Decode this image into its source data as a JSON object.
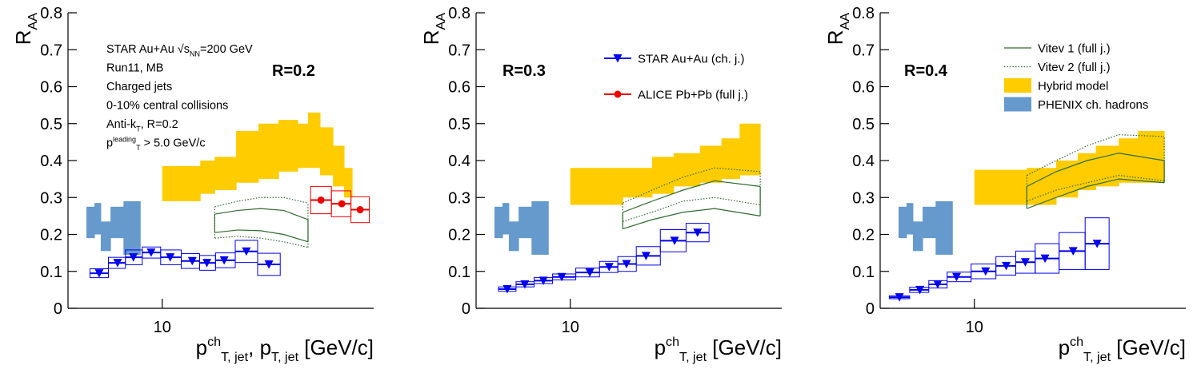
{
  "chart_data": [
    {
      "type": "scatter",
      "label": "R=0.2",
      "ylabel": [
        {
          "t": "R"
        },
        {
          "t": "AA",
          "v": "sub"
        }
      ],
      "xlabel": [
        {
          "t": "p"
        },
        {
          "t": "ch",
          "v": "sup"
        },
        {
          "t": "T, jet",
          "v": "sub"
        },
        {
          "t": ", p"
        },
        {
          "t": "T, jet",
          "v": "sub"
        },
        {
          "t": " [GeV/c]"
        }
      ],
      "annotation": [
        [
          {
            "t": "STAR Au+Au √s"
          },
          {
            "t": "NN",
            "v": "sub"
          },
          {
            "t": "=200 GeV"
          }
        ],
        [
          {
            "t": "Run11, MB"
          }
        ],
        [
          {
            "t": "Charged jets"
          }
        ],
        [
          {
            "t": "0-10% central collisions"
          }
        ],
        [
          {
            "t": "Anti-k"
          },
          {
            "t": "T",
            "v": "sub"
          },
          {
            "t": ", R=0.2"
          }
        ],
        [
          {
            "t": "p"
          },
          {
            "t": "leading",
            "v": "sup"
          },
          {
            "t": "T",
            "v": "sub"
          },
          {
            "t": " > 5.0 GeV/c"
          }
        ]
      ],
      "log_x": true,
      "xlim": [
        4.5,
        60
      ],
      "ylim": [
        0,
        0.8
      ],
      "xticks": [
        10
      ],
      "yticks": [
        0,
        0.1,
        0.2,
        0.3,
        0.4,
        0.5,
        0.6,
        0.7,
        0.8
      ],
      "legend": [],
      "series": [
        {
          "kind": "steps",
          "color": "#6699cc",
          "edges": [
            5.26,
            5.63,
            5.94,
            6.45,
            7.2,
            8.3
          ],
          "low": [
            0.19,
            0.2,
            0.155,
            0.19,
            0.145
          ],
          "high": [
            0.275,
            0.285,
            0.235,
            0.275,
            0.29
          ]
        },
        {
          "kind": "steps",
          "color": "#ffcc00",
          "edges": [
            10,
            13.8,
            15.6,
            18.7,
            22.6,
            26.8,
            31.5,
            34.4,
            38.1,
            42.5,
            46.7,
            50
          ],
          "low": [
            0.29,
            0.31,
            0.32,
            0.34,
            0.35,
            0.37,
            0.38,
            0.38,
            0.36,
            0.33,
            0.3
          ],
          "high": [
            0.385,
            0.4,
            0.41,
            0.48,
            0.5,
            0.51,
            0.5,
            0.53,
            0.49,
            0.44,
            0.38
          ]
        },
        {
          "kind": "curves",
          "color": "#2e6b2e",
          "dotted": false,
          "x": [
            15.6,
            19,
            23,
            28,
            34.4
          ],
          "low": [
            0.205,
            0.212,
            0.21,
            0.2,
            0.18
          ],
          "high": [
            0.255,
            0.265,
            0.27,
            0.265,
            0.24
          ]
        },
        {
          "kind": "curves",
          "color": "#2e6b2e",
          "dotted": true,
          "x": [
            15.6,
            19,
            23,
            28,
            34.4
          ],
          "low": [
            0.19,
            0.195,
            0.19,
            0.18,
            0.165
          ],
          "high": [
            0.275,
            0.29,
            0.3,
            0.3,
            0.285
          ]
        },
        {
          "kind": "points",
          "marker": "triangle",
          "color": "#0000ee",
          "x": [
            5.86,
            6.85,
            7.83,
            9.1,
            10.7,
            12.9,
            14.6,
            16.9,
            20.4,
            24.7
          ],
          "values": [
            0.095,
            0.123,
            0.138,
            0.151,
            0.138,
            0.128,
            0.123,
            0.13,
            0.154,
            0.119
          ],
          "sys": [
            0.012,
            0.015,
            0.02,
            0.015,
            0.02,
            0.02,
            0.02,
            0.02,
            0.03,
            0.03
          ]
        },
        {
          "kind": "points",
          "marker": "circle",
          "color": "#ee0000",
          "x": [
            38.4,
            45.8,
            53.5
          ],
          "values": [
            0.293,
            0.283,
            0.267
          ],
          "sys": [
            0.037,
            0.035,
            0.035
          ]
        }
      ]
    },
    {
      "type": "scatter",
      "label": "R=0.3",
      "ylabel": [
        {
          "t": "R"
        },
        {
          "t": "AA",
          "v": "sub"
        }
      ],
      "xlabel": [
        {
          "t": "p"
        },
        {
          "t": "ch",
          "v": "sup"
        },
        {
          "t": "T, jet",
          "v": "sub"
        },
        {
          "t": " [GeV/c]"
        }
      ],
      "annotation": [],
      "log_x": true,
      "xlim": [
        4.5,
        60
      ],
      "ylim": [
        0,
        0.8
      ],
      "xticks": [
        10
      ],
      "yticks": [
        0,
        0.1,
        0.2,
        0.3,
        0.4,
        0.5,
        0.6,
        0.7,
        0.8
      ],
      "legend": [
        {
          "name": "STAR Au+Au (ch. j.)",
          "style": "triangle",
          "color": "#0000ee"
        },
        {
          "name": "ALICE Pb+Pb (full j.)",
          "style": "circle",
          "color": "#ee0000"
        }
      ],
      "series": [
        {
          "kind": "steps",
          "color": "#6699cc",
          "edges": [
            5.26,
            5.63,
            5.94,
            6.45,
            7.2,
            8.3
          ],
          "low": [
            0.19,
            0.2,
            0.155,
            0.19,
            0.145
          ],
          "high": [
            0.275,
            0.285,
            0.235,
            0.275,
            0.29
          ]
        },
        {
          "kind": "steps",
          "color": "#ffcc00",
          "edges": [
            10,
            15.6,
            20,
            24,
            30,
            36,
            42,
            50
          ],
          "low": [
            0.28,
            0.3,
            0.31,
            0.33,
            0.34,
            0.35,
            0.36
          ],
          "high": [
            0.38,
            0.38,
            0.41,
            0.42,
            0.44,
            0.46,
            0.5
          ]
        },
        {
          "kind": "curves",
          "color": "#2e6b2e",
          "dotted": false,
          "x": [
            15.6,
            20,
            26,
            34,
            50
          ],
          "low": [
            0.215,
            0.24,
            0.26,
            0.27,
            0.25
          ],
          "high": [
            0.26,
            0.29,
            0.32,
            0.345,
            0.33
          ]
        },
        {
          "kind": "curves",
          "color": "#2e6b2e",
          "dotted": true,
          "x": [
            15.6,
            20,
            26,
            34,
            50
          ],
          "low": [
            0.235,
            0.26,
            0.29,
            0.3,
            0.28
          ],
          "high": [
            0.285,
            0.32,
            0.355,
            0.38,
            0.37
          ]
        },
        {
          "kind": "points",
          "marker": "triangle",
          "color": "#0000ee",
          "x": [
            5.86,
            6.8,
            7.96,
            9.3,
            11.8,
            13.9,
            16.1,
            19,
            24.2,
            29.4
          ],
          "values": [
            0.052,
            0.065,
            0.075,
            0.085,
            0.097,
            0.112,
            0.12,
            0.142,
            0.183,
            0.205
          ],
          "sys": [
            0.006,
            0.007,
            0.008,
            0.008,
            0.012,
            0.015,
            0.02,
            0.025,
            0.03,
            0.025
          ]
        }
      ]
    },
    {
      "type": "scatter",
      "label": "R=0.4",
      "ylabel": [
        {
          "t": "R"
        },
        {
          "t": "AA",
          "v": "sub"
        }
      ],
      "xlabel": [
        {
          "t": "p"
        },
        {
          "t": "ch",
          "v": "sup"
        },
        {
          "t": "T, jet",
          "v": "sub"
        },
        {
          "t": " [GeV/c]"
        }
      ],
      "annotation": [],
      "log_x": true,
      "xlim": [
        4.5,
        60
      ],
      "ylim": [
        0,
        0.8
      ],
      "xticks": [
        10
      ],
      "yticks": [
        0,
        0.1,
        0.2,
        0.3,
        0.4,
        0.5,
        0.6,
        0.7,
        0.8
      ],
      "legend": [
        {
          "name": "Vitev 1 (full j.)",
          "style": "line",
          "color": "#2e6b2e"
        },
        {
          "name": "Vitev 2 (full j.)",
          "style": "dotted",
          "color": "#2e6b2e"
        },
        {
          "name": "Hybrid model",
          "style": "fill",
          "color": "#ffcc00"
        },
        {
          "name": "PHENIX ch. hadrons",
          "style": "fill",
          "color": "#6699cc"
        }
      ],
      "series": [
        {
          "kind": "steps",
          "color": "#6699cc",
          "edges": [
            5.26,
            5.63,
            5.94,
            6.45,
            7.2,
            8.3
          ],
          "low": [
            0.19,
            0.2,
            0.155,
            0.19,
            0.145
          ],
          "high": [
            0.275,
            0.285,
            0.235,
            0.275,
            0.29
          ]
        },
        {
          "kind": "steps",
          "color": "#ffcc00",
          "edges": [
            10,
            15.6,
            20,
            24,
            28,
            34,
            40,
            50
          ],
          "low": [
            0.28,
            0.28,
            0.3,
            0.32,
            0.33,
            0.34,
            0.34
          ],
          "high": [
            0.375,
            0.38,
            0.4,
            0.42,
            0.44,
            0.46,
            0.48
          ]
        },
        {
          "kind": "curves",
          "color": "#2e6b2e",
          "dotted": false,
          "x": [
            15.6,
            20,
            26,
            34,
            50
          ],
          "low": [
            0.27,
            0.3,
            0.33,
            0.35,
            0.34
          ],
          "high": [
            0.33,
            0.37,
            0.4,
            0.42,
            0.4
          ]
        },
        {
          "kind": "curves",
          "color": "#2e6b2e",
          "dotted": true,
          "x": [
            15.6,
            20,
            26,
            34,
            50
          ],
          "low": [
            0.29,
            0.32,
            0.34,
            0.36,
            0.345
          ],
          "high": [
            0.36,
            0.4,
            0.44,
            0.47,
            0.465
          ]
        },
        {
          "kind": "points",
          "marker": "triangle",
          "color": "#0000ee",
          "x": [
            5.3,
            6.3,
            7.33,
            8.6,
            11,
            13.1,
            15.4,
            18.2,
            23.1,
            28.3
          ],
          "values": [
            0.03,
            0.05,
            0.065,
            0.085,
            0.1,
            0.115,
            0.125,
            0.135,
            0.155,
            0.175
          ],
          "sys": [
            0.004,
            0.007,
            0.01,
            0.013,
            0.02,
            0.025,
            0.03,
            0.04,
            0.05,
            0.07
          ]
        }
      ]
    }
  ]
}
